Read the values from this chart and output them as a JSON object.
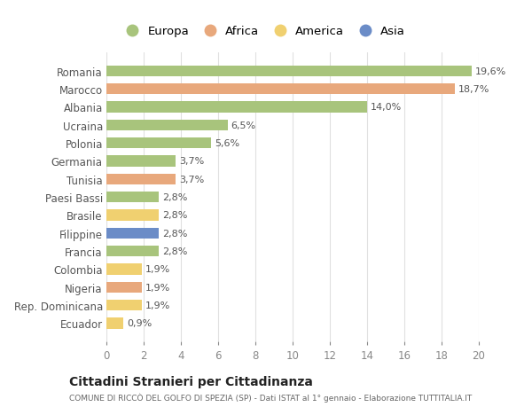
{
  "categories": [
    "Romania",
    "Marocco",
    "Albania",
    "Ucraina",
    "Polonia",
    "Germania",
    "Tunisia",
    "Paesi Bassi",
    "Brasile",
    "Filippine",
    "Francia",
    "Colombia",
    "Nigeria",
    "Rep. Dominicana",
    "Ecuador"
  ],
  "values": [
    19.6,
    18.7,
    14.0,
    6.5,
    5.6,
    3.7,
    3.7,
    2.8,
    2.8,
    2.8,
    2.8,
    1.9,
    1.9,
    1.9,
    0.9
  ],
  "labels": [
    "19,6%",
    "18,7%",
    "14,0%",
    "6,5%",
    "5,6%",
    "3,7%",
    "3,7%",
    "2,8%",
    "2,8%",
    "2,8%",
    "2,8%",
    "1,9%",
    "1,9%",
    "1,9%",
    "0,9%"
  ],
  "colors": [
    "#a8c47c",
    "#e8a87c",
    "#a8c47c",
    "#a8c47c",
    "#a8c47c",
    "#a8c47c",
    "#e8a87c",
    "#a8c47c",
    "#f0d070",
    "#6b8cc7",
    "#a8c47c",
    "#f0d070",
    "#e8a87c",
    "#f0d070",
    "#f0d070"
  ],
  "legend_labels": [
    "Europa",
    "Africa",
    "America",
    "Asia"
  ],
  "legend_colors": [
    "#a8c47c",
    "#e8a87c",
    "#f0d070",
    "#6b8cc7"
  ],
  "title": "Cittadini Stranieri per Cittadinanza",
  "subtitle": "COMUNE DI RICCÒ DEL GOLFO DI SPEZIA (SP) - Dati ISTAT al 1° gennaio - Elaborazione TUTTITALIA.IT",
  "xlim": [
    0,
    20
  ],
  "xticks": [
    0,
    2,
    4,
    6,
    8,
    10,
    12,
    14,
    16,
    18,
    20
  ],
  "background_color": "#ffffff",
  "grid_color": "#e0e0e0"
}
